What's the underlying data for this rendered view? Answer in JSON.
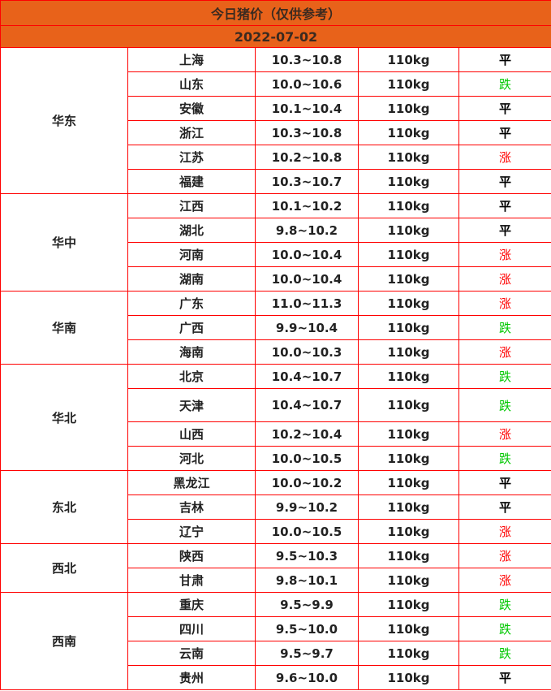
{
  "title": "今日猪价（仅供参考）",
  "date": "2022-07-02",
  "colors": {
    "header": "#E8621A",
    "border": "#FF0000",
    "up": "#FF0000",
    "down": "#00C800",
    "flat": "#000000"
  },
  "regions": [
    {
      "name": "华东",
      "rows": [
        {
          "province": "上海",
          "price": "10.3~10.8",
          "weight": "110kg",
          "trend": "平"
        },
        {
          "province": "山东",
          "price": "10.0~10.6",
          "weight": "110kg",
          "trend": "跌"
        },
        {
          "province": "安徽",
          "price": "10.1~10.4",
          "weight": "110kg",
          "trend": "平"
        },
        {
          "province": "浙江",
          "price": "10.3~10.8",
          "weight": "110kg",
          "trend": "平"
        },
        {
          "province": "江苏",
          "price": "10.2~10.8",
          "weight": "110kg",
          "trend": "涨"
        },
        {
          "province": "福建",
          "price": "10.3~10.7",
          "weight": "110kg",
          "trend": "平"
        }
      ]
    },
    {
      "name": "华中",
      "rows": [
        {
          "province": "江西",
          "price": "10.1~10.2",
          "weight": "110kg",
          "trend": "平"
        },
        {
          "province": "湖北",
          "price": "9.8~10.2",
          "weight": "110kg",
          "trend": "平"
        },
        {
          "province": "河南",
          "price": "10.0~10.4",
          "weight": "110kg",
          "trend": "涨"
        },
        {
          "province": "湖南",
          "price": "10.0~10.4",
          "weight": "110kg",
          "trend": "涨"
        }
      ]
    },
    {
      "name": "华南",
      "rows": [
        {
          "province": "广东",
          "price": "11.0~11.3",
          "weight": "110kg",
          "trend": "涨"
        },
        {
          "province": "广西",
          "price": "9.9~10.4",
          "weight": "110kg",
          "trend": "跌"
        },
        {
          "province": "海南",
          "price": "10.0~10.3",
          "weight": "110kg",
          "trend": "涨"
        }
      ]
    },
    {
      "name": "华北",
      "rows": [
        {
          "province": "北京",
          "price": "10.4~10.7",
          "weight": "110kg",
          "trend": "跌"
        },
        {
          "province": "天津",
          "price": "10.4~10.7",
          "weight": "110kg",
          "trend": "跌",
          "tall": true
        },
        {
          "province": "山西",
          "price": "10.2~10.4",
          "weight": "110kg",
          "trend": "涨"
        },
        {
          "province": "河北",
          "price": "10.0~10.5",
          "weight": "110kg",
          "trend": "跌"
        }
      ]
    },
    {
      "name": "东北",
      "rows": [
        {
          "province": "黑龙江",
          "price": "10.0~10.2",
          "weight": "110kg",
          "trend": "平"
        },
        {
          "province": "吉林",
          "price": "9.9~10.2",
          "weight": "110kg",
          "trend": "平"
        },
        {
          "province": "辽宁",
          "price": "10.0~10.5",
          "weight": "110kg",
          "trend": "涨"
        }
      ]
    },
    {
      "name": "西北",
      "rows": [
        {
          "province": "陕西",
          "price": "9.5~10.3",
          "weight": "110kg",
          "trend": "涨"
        },
        {
          "province": "甘肃",
          "price": "9.8~10.1",
          "weight": "110kg",
          "trend": "涨"
        }
      ]
    },
    {
      "name": "西南",
      "rows": [
        {
          "province": "重庆",
          "price": "9.5~9.9",
          "weight": "110kg",
          "trend": "跌"
        },
        {
          "province": "四川",
          "price": "9.5~10.0",
          "weight": "110kg",
          "trend": "跌"
        },
        {
          "province": "云南",
          "price": "9.5~9.7",
          "weight": "110kg",
          "trend": "跌"
        },
        {
          "province": "贵州",
          "price": "9.6~10.0",
          "weight": "110kg",
          "trend": "平"
        }
      ]
    }
  ]
}
